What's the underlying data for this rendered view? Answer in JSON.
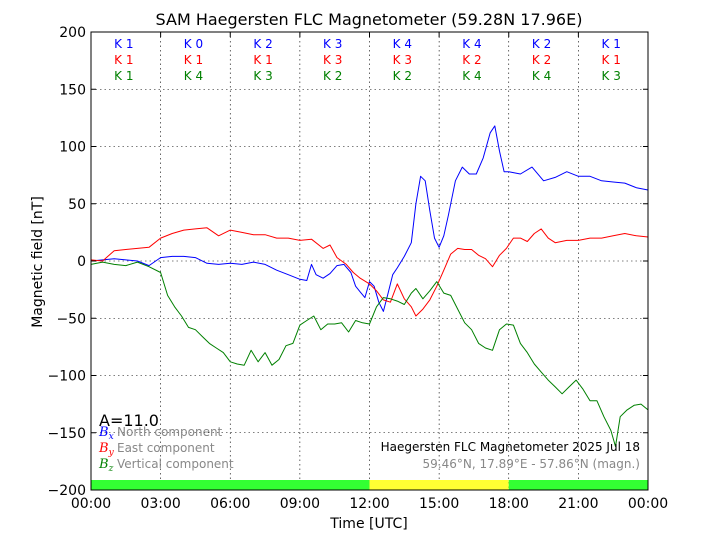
{
  "chart_data": {
    "type": "line",
    "title": "SAM Haegersten FLC Magnetometer (59.28N 17.96E)",
    "xlabel": "Time [UTC]",
    "ylabel": "Magnetic field [nT]",
    "xlim": [
      0,
      24
    ],
    "ylim": [
      -200,
      200
    ],
    "x_ticks": [
      "00:00",
      "03:00",
      "06:00",
      "09:00",
      "12:00",
      "15:00",
      "18:00",
      "21:00",
      "00:00"
    ],
    "y_ticks": [
      "200",
      "150",
      "100",
      "50",
      "0",
      "−50",
      "−100",
      "−150",
      "−200"
    ],
    "grid": true,
    "k_indices": {
      "north": [
        "K 1",
        "K 0",
        "K 2",
        "K 3",
        "K 4",
        "K 4",
        "K 2",
        "K 1"
      ],
      "east": [
        "K 1",
        "K 1",
        "K 1",
        "K 3",
        "K 3",
        "K 2",
        "K 2",
        "K 1"
      ],
      "vertical": [
        "K 1",
        "K 4",
        "K 3",
        "K 2",
        "K 2",
        "K 4",
        "K 4",
        "K 3"
      ]
    },
    "a_index": "A=11.0",
    "legend": [
      {
        "symbol": "B",
        "sub": "x",
        "label": "North component",
        "color": "#0000ff"
      },
      {
        "symbol": "B",
        "sub": "y",
        "label": "East component",
        "color": "#ff0000"
      },
      {
        "symbol": "B",
        "sub": "z",
        "label": "Vertical component",
        "color": "#008000"
      }
    ],
    "info_line1": "Haegersten FLC Magnetometer 2025 Jul 18",
    "info_line2": "59.46°N, 17.89°E - 57.86°N (magn.)",
    "daylight_bar": [
      {
        "start": 0,
        "end": 12,
        "color": "#33ff33"
      },
      {
        "start": 12,
        "end": 18,
        "color": "#ffff33"
      },
      {
        "start": 18,
        "end": 24,
        "color": "#33ff33"
      }
    ],
    "series": [
      {
        "name": "North component",
        "color": "#0000ff",
        "points": [
          [
            0,
            0
          ],
          [
            0.5,
            1
          ],
          [
            1,
            2
          ],
          [
            1.5,
            1
          ],
          [
            2,
            0
          ],
          [
            2.5,
            -4
          ],
          [
            3,
            3
          ],
          [
            3.5,
            4
          ],
          [
            4,
            4
          ],
          [
            4.5,
            3
          ],
          [
            5,
            -2
          ],
          [
            5.5,
            -3
          ],
          [
            6,
            -2
          ],
          [
            6.5,
            -3
          ],
          [
            7,
            -1
          ],
          [
            7.5,
            -3
          ],
          [
            8,
            -8
          ],
          [
            8.5,
            -12
          ],
          [
            9,
            -16
          ],
          [
            9.3,
            -17
          ],
          [
            9.5,
            -3
          ],
          [
            9.7,
            -12
          ],
          [
            10,
            -15
          ],
          [
            10.3,
            -11
          ],
          [
            10.6,
            -4
          ],
          [
            10.9,
            -3
          ],
          [
            11.2,
            -10
          ],
          [
            11.4,
            -22
          ],
          [
            11.6,
            -27
          ],
          [
            11.8,
            -32
          ],
          [
            12.0,
            -18
          ],
          [
            12.2,
            -22
          ],
          [
            12.4,
            -36
          ],
          [
            12.6,
            -44
          ],
          [
            12.8,
            -28
          ],
          [
            13.0,
            -12
          ],
          [
            13.2,
            -6
          ],
          [
            13.5,
            4
          ],
          [
            13.8,
            16
          ],
          [
            14.0,
            50
          ],
          [
            14.2,
            74
          ],
          [
            14.4,
            70
          ],
          [
            14.6,
            44
          ],
          [
            14.8,
            20
          ],
          [
            15.0,
            12
          ],
          [
            15.2,
            22
          ],
          [
            15.4,
            40
          ],
          [
            15.7,
            70
          ],
          [
            16.0,
            82
          ],
          [
            16.3,
            76
          ],
          [
            16.6,
            76
          ],
          [
            16.9,
            90
          ],
          [
            17.2,
            112
          ],
          [
            17.4,
            118
          ],
          [
            17.6,
            96
          ],
          [
            17.8,
            78
          ],
          [
            18.0,
            78
          ],
          [
            18.5,
            76
          ],
          [
            19.0,
            82
          ],
          [
            19.5,
            70
          ],
          [
            20.0,
            73
          ],
          [
            20.5,
            78
          ],
          [
            21.0,
            74
          ],
          [
            21.5,
            74
          ],
          [
            22.0,
            70
          ],
          [
            22.5,
            69
          ],
          [
            23.0,
            68
          ],
          [
            23.5,
            64
          ],
          [
            24,
            62
          ]
        ]
      },
      {
        "name": "East component",
        "color": "#ff0000",
        "points": [
          [
            0,
            1
          ],
          [
            0.5,
            0
          ],
          [
            1,
            9
          ],
          [
            1.5,
            10
          ],
          [
            2,
            11
          ],
          [
            2.5,
            12
          ],
          [
            3,
            20
          ],
          [
            3.5,
            24
          ],
          [
            4,
            27
          ],
          [
            4.5,
            28
          ],
          [
            5,
            29
          ],
          [
            5.5,
            22
          ],
          [
            6,
            27
          ],
          [
            6.5,
            25
          ],
          [
            7,
            23
          ],
          [
            7.5,
            23
          ],
          [
            8,
            20
          ],
          [
            8.5,
            20
          ],
          [
            9,
            18
          ],
          [
            9.5,
            19
          ],
          [
            10,
            11
          ],
          [
            10.3,
            14
          ],
          [
            10.6,
            3
          ],
          [
            11.0,
            -3
          ],
          [
            11.3,
            -10
          ],
          [
            11.6,
            -15
          ],
          [
            12.0,
            -20
          ],
          [
            12.3,
            -26
          ],
          [
            12.6,
            -34
          ],
          [
            12.9,
            -36
          ],
          [
            13.2,
            -20
          ],
          [
            13.5,
            -33
          ],
          [
            13.8,
            -40
          ],
          [
            14.0,
            -48
          ],
          [
            14.3,
            -42
          ],
          [
            14.6,
            -34
          ],
          [
            14.9,
            -22
          ],
          [
            15.2,
            -8
          ],
          [
            15.5,
            6
          ],
          [
            15.8,
            11
          ],
          [
            16.1,
            10
          ],
          [
            16.4,
            10
          ],
          [
            16.7,
            5
          ],
          [
            17.0,
            2
          ],
          [
            17.3,
            -5
          ],
          [
            17.6,
            5
          ],
          [
            17.9,
            11
          ],
          [
            18.2,
            20
          ],
          [
            18.5,
            20
          ],
          [
            18.8,
            17
          ],
          [
            19.1,
            24
          ],
          [
            19.4,
            28
          ],
          [
            19.7,
            20
          ],
          [
            20.0,
            16
          ],
          [
            20.5,
            18
          ],
          [
            21,
            18
          ],
          [
            21.5,
            20
          ],
          [
            22,
            20
          ],
          [
            22.5,
            22
          ],
          [
            23,
            24
          ],
          [
            23.5,
            22
          ],
          [
            24,
            21
          ]
        ]
      },
      {
        "name": "Vertical component",
        "color": "#008000",
        "points": [
          [
            0,
            -3
          ],
          [
            0.5,
            -1
          ],
          [
            1,
            -3
          ],
          [
            1.5,
            -4
          ],
          [
            2,
            -1
          ],
          [
            2.5,
            -5
          ],
          [
            3,
            -10
          ],
          [
            3.3,
            -30
          ],
          [
            3.6,
            -40
          ],
          [
            3.9,
            -48
          ],
          [
            4.2,
            -58
          ],
          [
            4.5,
            -60
          ],
          [
            4.8,
            -66
          ],
          [
            5.1,
            -72
          ],
          [
            5.4,
            -76
          ],
          [
            5.7,
            -80
          ],
          [
            6,
            -88
          ],
          [
            6.3,
            -90
          ],
          [
            6.6,
            -91
          ],
          [
            6.9,
            -78
          ],
          [
            7.2,
            -88
          ],
          [
            7.5,
            -80
          ],
          [
            7.8,
            -91
          ],
          [
            8.1,
            -86
          ],
          [
            8.4,
            -74
          ],
          [
            8.7,
            -72
          ],
          [
            9.0,
            -56
          ],
          [
            9.3,
            -52
          ],
          [
            9.6,
            -48
          ],
          [
            9.9,
            -60
          ],
          [
            10.2,
            -55
          ],
          [
            10.5,
            -55
          ],
          [
            10.8,
            -54
          ],
          [
            11.1,
            -62
          ],
          [
            11.4,
            -52
          ],
          [
            11.7,
            -54
          ],
          [
            12.0,
            -55
          ],
          [
            12.3,
            -40
          ],
          [
            12.6,
            -32
          ],
          [
            12.9,
            -33
          ],
          [
            13.2,
            -35
          ],
          [
            13.5,
            -38
          ],
          [
            13.8,
            -28
          ],
          [
            14.0,
            -24
          ],
          [
            14.3,
            -33
          ],
          [
            14.6,
            -26
          ],
          [
            14.9,
            -18
          ],
          [
            15.2,
            -28
          ],
          [
            15.5,
            -30
          ],
          [
            15.8,
            -42
          ],
          [
            16.1,
            -54
          ],
          [
            16.4,
            -60
          ],
          [
            16.7,
            -72
          ],
          [
            17.0,
            -76
          ],
          [
            17.3,
            -78
          ],
          [
            17.6,
            -60
          ],
          [
            17.9,
            -55
          ],
          [
            18.2,
            -56
          ],
          [
            18.5,
            -72
          ],
          [
            18.8,
            -80
          ],
          [
            19.1,
            -90
          ],
          [
            19.4,
            -97
          ],
          [
            19.7,
            -104
          ],
          [
            20.0,
            -110
          ],
          [
            20.3,
            -116
          ],
          [
            20.6,
            -110
          ],
          [
            20.9,
            -104
          ],
          [
            21.2,
            -112
          ],
          [
            21.5,
            -122
          ],
          [
            21.8,
            -122
          ],
          [
            22.1,
            -136
          ],
          [
            22.4,
            -148
          ],
          [
            22.6,
            -162
          ],
          [
            22.8,
            -136
          ],
          [
            23.1,
            -130
          ],
          [
            23.4,
            -126
          ],
          [
            23.7,
            -125
          ],
          [
            24,
            -130
          ]
        ]
      }
    ]
  }
}
